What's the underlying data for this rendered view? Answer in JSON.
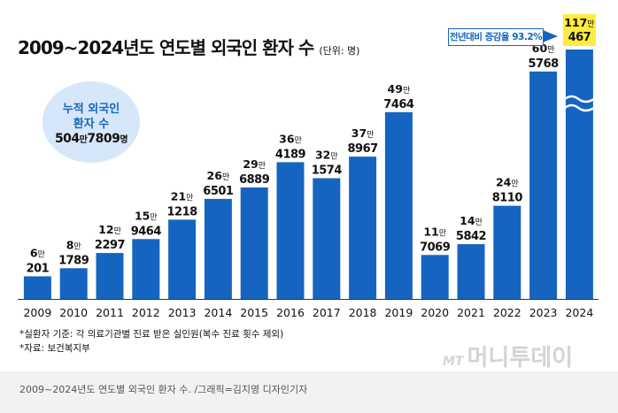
{
  "title": "2009~2024년도 연도별 외국인 환자 수",
  "unit": "(단위: 명)",
  "cumulative": {
    "line1": "누적 외국인",
    "line2": "환자 수",
    "value_man": "504",
    "man_suffix": "만",
    "value_rest": "7809",
    "suffix": "명"
  },
  "growth_note": "전년대비 증감율 93.2%",
  "notes": [
    "*실환자 기준: 각 의료기관별 진료 받은 실인원(복수 진료 횟수 제외)",
    "*자료: 보건복지부"
  ],
  "footer_caption": "2009~2024년도 연도별 외국인 환자 수. /그래픽=김지영 디자인기자",
  "watermark": {
    "mt": "MT",
    "name": "머니투데이"
  },
  "colors": {
    "bar": "#1565c0",
    "highlight": "#ffeb3b",
    "circle": "#d6e7f9"
  },
  "chart_data": {
    "type": "bar",
    "title": "2009~2024년도 연도별 외국인 환자 수",
    "ylabel": "",
    "xlabel": "",
    "unit": "명",
    "categories": [
      "2009",
      "2010",
      "2011",
      "2012",
      "2013",
      "2014",
      "2015",
      "2016",
      "2017",
      "2018",
      "2019",
      "2020",
      "2021",
      "2022",
      "2023",
      "2024"
    ],
    "values": [
      60201,
      81789,
      122297,
      159464,
      211218,
      266501,
      296889,
      364189,
      321574,
      378967,
      497464,
      117069,
      145842,
      248110,
      605768,
      1170467
    ],
    "labels": [
      {
        "man": "6",
        "rest": "201"
      },
      {
        "man": "8",
        "rest": "1789"
      },
      {
        "man": "12",
        "rest": "2297"
      },
      {
        "man": "15",
        "rest": "9464"
      },
      {
        "man": "21",
        "rest": "1218"
      },
      {
        "man": "26",
        "rest": "6501"
      },
      {
        "man": "29",
        "rest": "6889"
      },
      {
        "man": "36",
        "rest": "4189"
      },
      {
        "man": "32",
        "rest": "1574"
      },
      {
        "man": "37",
        "rest": "8967"
      },
      {
        "man": "49",
        "rest": "7464"
      },
      {
        "man": "11",
        "rest": "7069"
      },
      {
        "man": "14",
        "rest": "5842"
      },
      {
        "man": "24",
        "rest": "8110"
      },
      {
        "man": "60",
        "rest": "5768"
      },
      {
        "man": "117",
        "rest": "467"
      }
    ],
    "man_suffix": "만",
    "highlight_index": 15,
    "axis_break_index": 15,
    "grid": false,
    "legend": "none"
  }
}
